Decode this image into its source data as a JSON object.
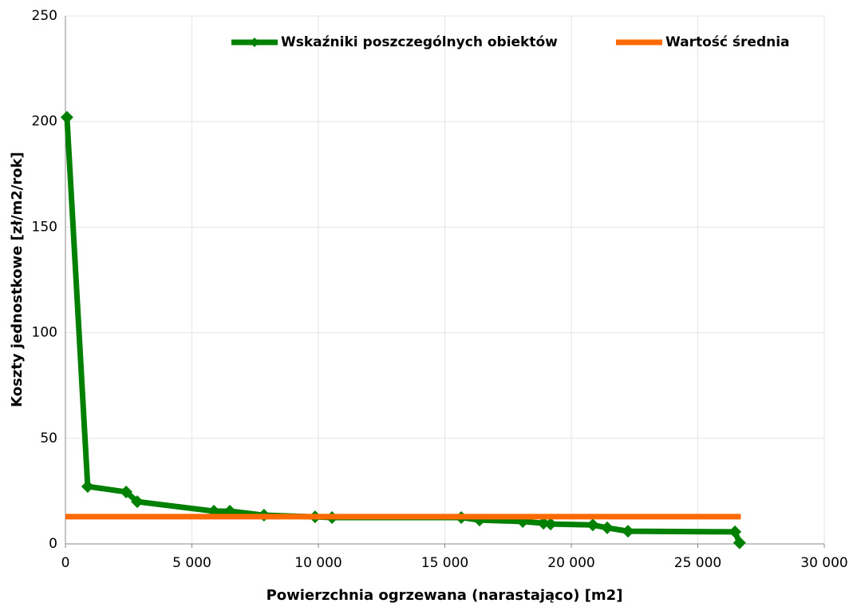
{
  "chart_data": {
    "type": "line",
    "xlabel": "Powierzchnia ogrzewana (narastająco) [m2]",
    "ylabel": "Koszty jednostkowe [zł/m2/rok]",
    "xlim": [
      0,
      30000
    ],
    "xticks": [
      0,
      {
        "value": 5000,
        "label": "5 000"
      },
      {
        "value": 10000,
        "label": "10 000"
      },
      {
        "value": 15000,
        "label": "15 000"
      },
      {
        "value": 20000,
        "label": "20 000"
      },
      {
        "value": 25000,
        "label": "25 000"
      },
      {
        "value": 30000,
        "label": "30 000"
      }
    ],
    "ylim": [
      0,
      250
    ],
    "yticks": [
      0,
      50,
      100,
      150,
      200,
      250
    ],
    "grid": true,
    "legend": "top",
    "series": [
      {
        "name": "Wskaźniki poszczególnych obiektów",
        "color": "#008000",
        "marker": "diamond",
        "x": [
          60,
          880,
          2400,
          2840,
          5870,
          6500,
          7850,
          9870,
          10540,
          15650,
          16370,
          18080,
          18900,
          19180,
          20850,
          21420,
          22240,
          26470,
          26650
        ],
        "values": [
          202,
          27.2,
          24.6,
          20,
          15.5,
          15.5,
          13.6,
          12.8,
          12.5,
          12.5,
          11.3,
          10.6,
          9.8,
          9.4,
          9,
          7.6,
          6,
          5.7,
          0.5
        ]
      },
      {
        "name": "Wartość średnia",
        "color": "#ff6a00",
        "x": [
          0,
          26700
        ],
        "values": [
          12.9,
          12.9
        ]
      }
    ]
  }
}
